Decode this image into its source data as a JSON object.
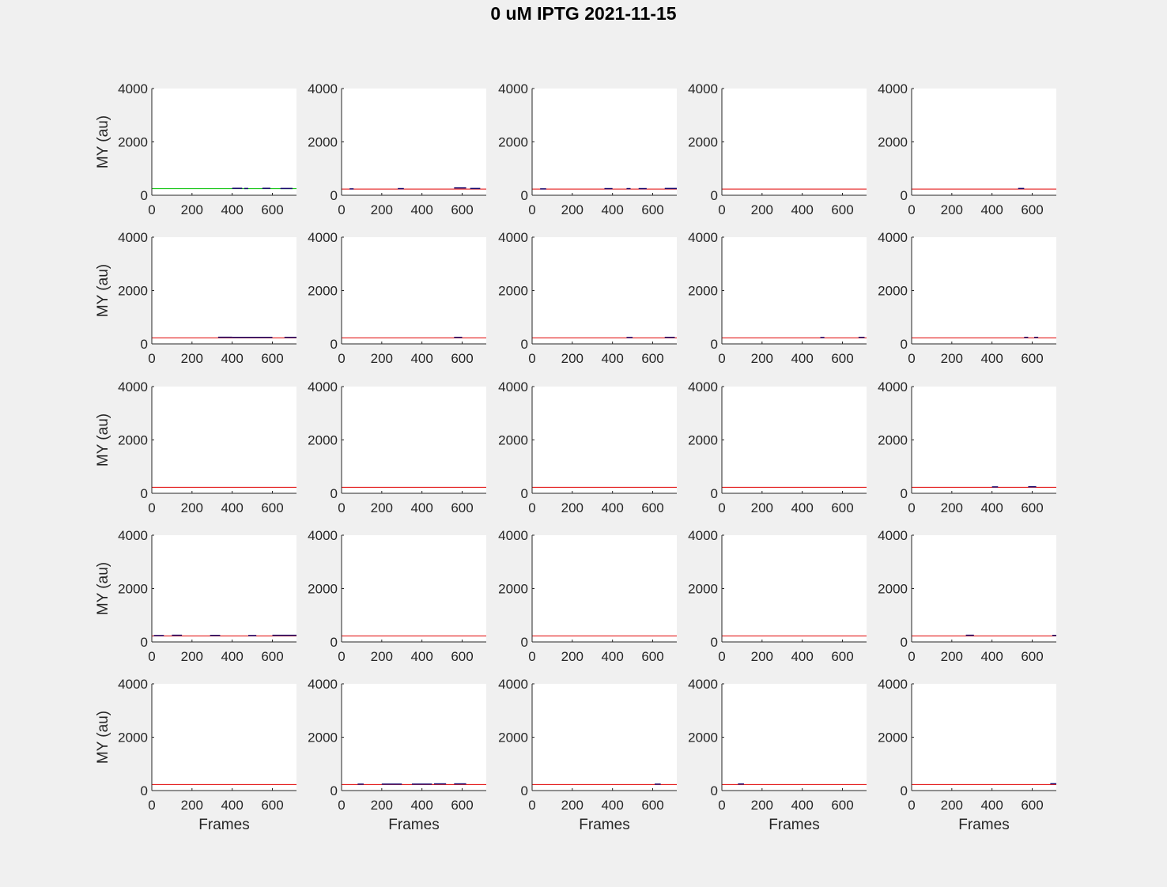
{
  "figure": {
    "title": "0 uM IPTG 2021-11-15"
  },
  "chart_data": {
    "type": "line",
    "layout": "5x5 small multiples",
    "ylabel": "MY (au)",
    "xlabel": "Frames",
    "xlim": [
      0,
      720
    ],
    "ylim": [
      0,
      4000
    ],
    "xticks": [
      "0",
      "200",
      "400",
      "600"
    ],
    "yticks": [
      "0",
      "2000",
      "4000"
    ],
    "grid": false,
    "colors": {
      "threshold": "#e00000",
      "threshold_panel1": "#00c000",
      "trace": "#1a0a6e",
      "axes_bg": "#ffffff",
      "fig_bg": "#f0f0f0"
    },
    "panels": [
      {
        "threshold": 250,
        "segments": [
          [
            400,
            450,
            260
          ],
          [
            460,
            480,
            255
          ],
          [
            550,
            590,
            260
          ],
          [
            640,
            700,
            255
          ]
        ]
      },
      {
        "threshold": 235,
        "segments": [
          [
            40,
            60,
            240
          ],
          [
            280,
            310,
            250
          ],
          [
            560,
            620,
            275
          ],
          [
            640,
            690,
            255
          ]
        ]
      },
      {
        "threshold": 235,
        "segments": [
          [
            40,
            70,
            240
          ],
          [
            360,
            400,
            250
          ],
          [
            470,
            490,
            250
          ],
          [
            530,
            570,
            250
          ],
          [
            660,
            720,
            255
          ]
        ]
      },
      {
        "threshold": 235,
        "segments": []
      },
      {
        "threshold": 235,
        "segments": [
          [
            530,
            560,
            255
          ]
        ]
      },
      {
        "threshold": 225,
        "segments": [
          [
            330,
            400,
            250
          ],
          [
            400,
            600,
            245
          ],
          [
            660,
            720,
            245
          ]
        ]
      },
      {
        "threshold": 225,
        "segments": [
          [
            560,
            600,
            245
          ]
        ]
      },
      {
        "threshold": 225,
        "segments": [
          [
            470,
            500,
            240
          ],
          [
            660,
            710,
            245
          ]
        ]
      },
      {
        "threshold": 225,
        "segments": [
          [
            490,
            510,
            240
          ],
          [
            680,
            710,
            245
          ]
        ]
      },
      {
        "threshold": 225,
        "segments": [
          [
            560,
            580,
            245
          ],
          [
            610,
            630,
            245
          ]
        ]
      },
      {
        "threshold": 225,
        "segments": []
      },
      {
        "threshold": 225,
        "segments": []
      },
      {
        "threshold": 225,
        "segments": []
      },
      {
        "threshold": 225,
        "segments": []
      },
      {
        "threshold": 225,
        "segments": [
          [
            400,
            430,
            240
          ],
          [
            580,
            620,
            245
          ]
        ]
      },
      {
        "threshold": 225,
        "segments": [
          [
            10,
            60,
            240
          ],
          [
            100,
            150,
            250
          ],
          [
            290,
            340,
            245
          ],
          [
            480,
            520,
            240
          ],
          [
            600,
            720,
            250
          ]
        ]
      },
      {
        "threshold": 225,
        "segments": []
      },
      {
        "threshold": 225,
        "segments": []
      },
      {
        "threshold": 225,
        "segments": []
      },
      {
        "threshold": 225,
        "segments": [
          [
            270,
            310,
            250
          ],
          [
            700,
            720,
            245
          ]
        ]
      },
      {
        "threshold": 225,
        "segments": []
      },
      {
        "threshold": 225,
        "segments": [
          [
            80,
            110,
            240
          ],
          [
            200,
            300,
            240
          ],
          [
            350,
            450,
            240
          ],
          [
            460,
            520,
            250
          ],
          [
            560,
            620,
            250
          ]
        ]
      },
      {
        "threshold": 225,
        "segments": [
          [
            610,
            640,
            240
          ]
        ]
      },
      {
        "threshold": 225,
        "segments": [
          [
            80,
            110,
            245
          ]
        ]
      },
      {
        "threshold": 225,
        "segments": [
          [
            690,
            720,
            255
          ]
        ]
      }
    ]
  }
}
